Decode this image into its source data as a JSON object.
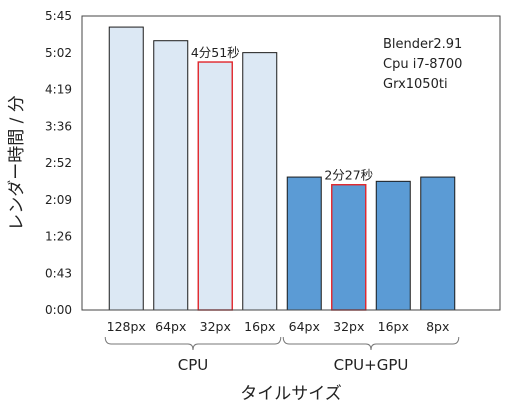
{
  "chart_data": {
    "type": "bar",
    "ylabel": "レンダー時間 / 分",
    "xlabel": "タイルサイズ",
    "yticks": [
      "0:00",
      "0:43",
      "1:26",
      "2:09",
      "2:52",
      "3:36",
      "4:19",
      "5:02",
      "5:45"
    ],
    "ylim_seconds": [
      0,
      345
    ],
    "groups": [
      {
        "name": "CPU",
        "color": "#dce8f4"
      },
      {
        "name": "CPU+GPU",
        "color": "#5b9bd5"
      }
    ],
    "bars": [
      {
        "group": "CPU",
        "category": "128px",
        "seconds": 332,
        "highlight": false
      },
      {
        "group": "CPU",
        "category": "64px",
        "seconds": 316,
        "highlight": false
      },
      {
        "group": "CPU",
        "category": "32px",
        "seconds": 291,
        "highlight": true,
        "label": "4分51秒"
      },
      {
        "group": "CPU",
        "category": "16px",
        "seconds": 302,
        "highlight": false
      },
      {
        "group": "CPU+GPU",
        "category": "64px",
        "seconds": 156,
        "highlight": false
      },
      {
        "group": "CPU+GPU",
        "category": "32px",
        "seconds": 147,
        "highlight": true,
        "label": "2分27秒"
      },
      {
        "group": "CPU+GPU",
        "category": "16px",
        "seconds": 151,
        "highlight": false
      },
      {
        "group": "CPU+GPU",
        "category": "8px",
        "seconds": 156,
        "highlight": false
      }
    ],
    "info_lines": [
      "Blender2.91",
      "Cpu i7-8700",
      "Grx1050ti"
    ],
    "highlight_color": "#e0252b",
    "grid": false
  }
}
